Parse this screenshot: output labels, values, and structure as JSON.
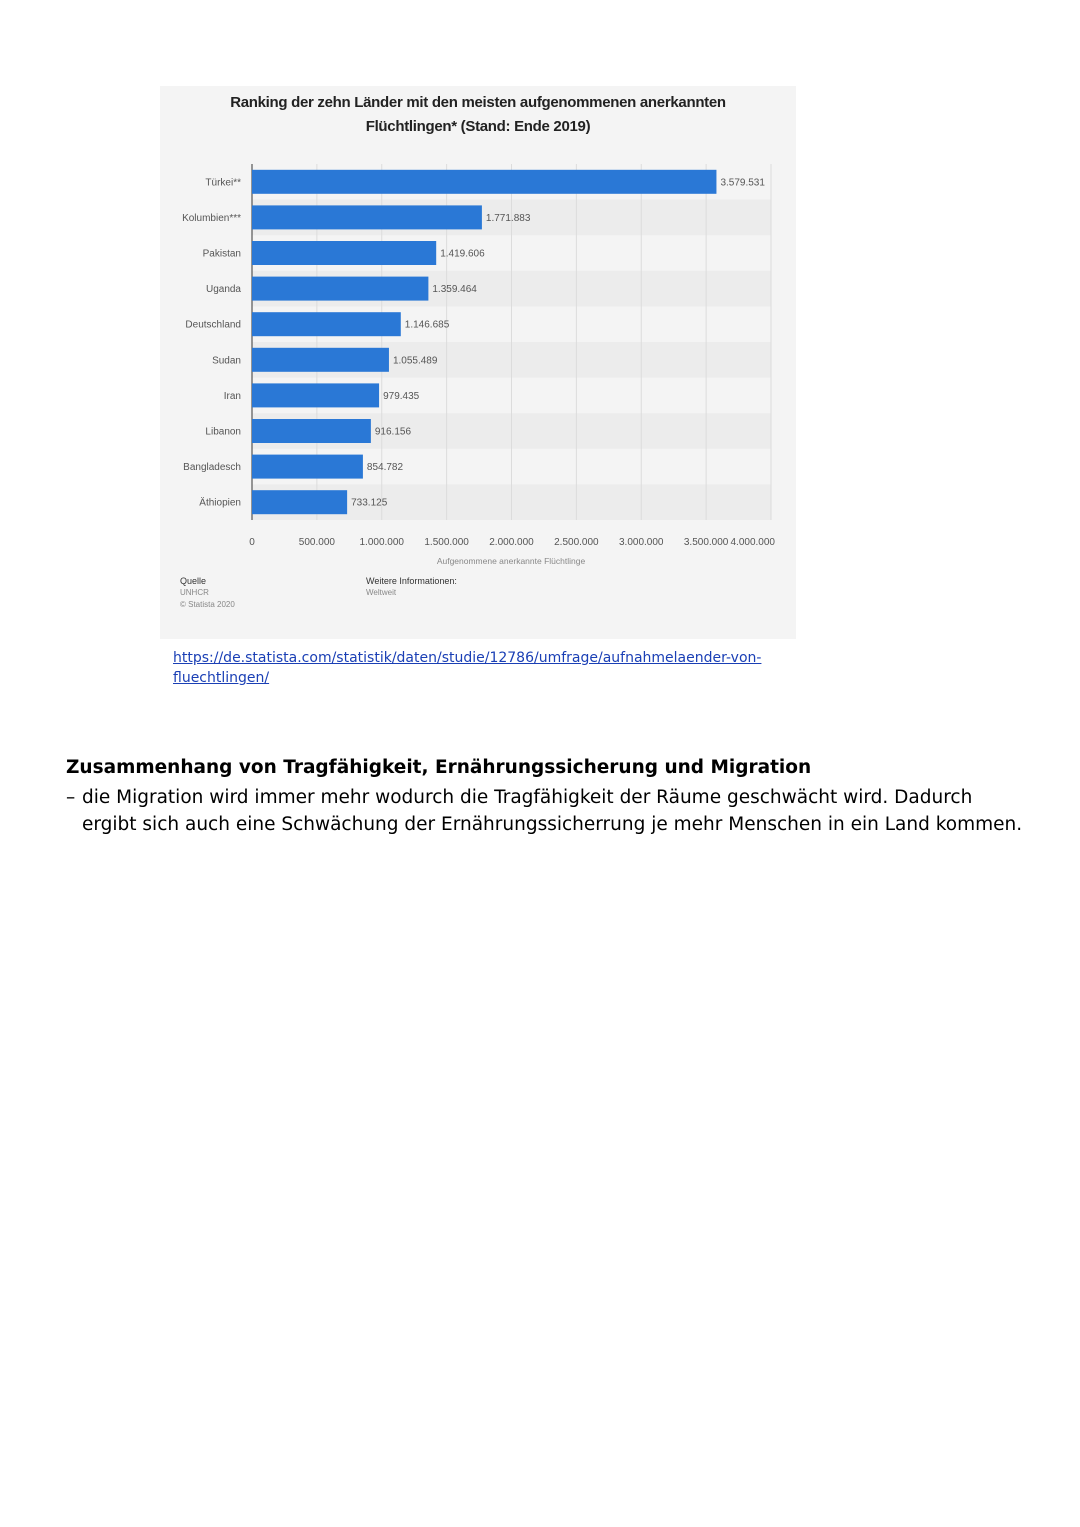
{
  "chart": {
    "title_line1": "Ranking der zehn Länder mit den meisten aufgenommenen anerkannten",
    "title_line2": "Flüchtlingen* (Stand: Ende 2019)",
    "source_label": "Quelle",
    "source_value": "UNHCR",
    "copyright": "© Statista 2020",
    "info_label": "Weitere Informationen:",
    "info_value": "Weltweit"
  },
  "chart_data": {
    "type": "bar",
    "orientation": "horizontal",
    "categories": [
      "Türkei**",
      "Kolumbien***",
      "Pakistan",
      "Uganda",
      "Deutschland",
      "Sudan",
      "Iran",
      "Libanon",
      "Bangladesch",
      "Äthiopien"
    ],
    "values": [
      3579531,
      1771883,
      1419606,
      1359464,
      1146685,
      1055489,
      979435,
      916156,
      854782,
      733125
    ],
    "value_labels": [
      "3.579.531",
      "1.771.883",
      "1.419.606",
      "1.359.464",
      "1.146.685",
      "1.055.489",
      "979.435",
      "916.156",
      "854.782",
      "733.125"
    ],
    "xlabel": "Aufgenommene anerkannte Flüchtlinge",
    "xlim": [
      0,
      4000000
    ],
    "x_ticks": [
      0,
      500000,
      1000000,
      1500000,
      2000000,
      2500000,
      3000000,
      3500000,
      4000000
    ],
    "x_tick_labels": [
      "0",
      "500.000",
      "1.000.000",
      "1.500.000",
      "2.000.000",
      "2.500.000",
      "3.000.000",
      "3.500.000",
      "4.000.000"
    ],
    "bar_color": "#2a78d6",
    "grid": true
  },
  "link": {
    "text": "https://de.statista.com/statistik/daten/studie/12786/umfrage/aufnahmelaender-von-fluechtlingen/",
    "line1": "https://de.statista.com/statistik/daten/studie/12786/umfrage/aufnahmelaender-von-",
    "line2": "fluechtlingen/"
  },
  "section": {
    "heading": "Zusammenhang von Tragfähigkeit, Ernährungssicherung und Migration",
    "dash": "–",
    "body": "die Migration wird immer mehr wodurch die Tragfähigkeit der Räume geschwächt wird. Dadurch ergibt sich auch eine Schwächung der Ernährungssicherrung je mehr Menschen in ein Land kommen."
  }
}
